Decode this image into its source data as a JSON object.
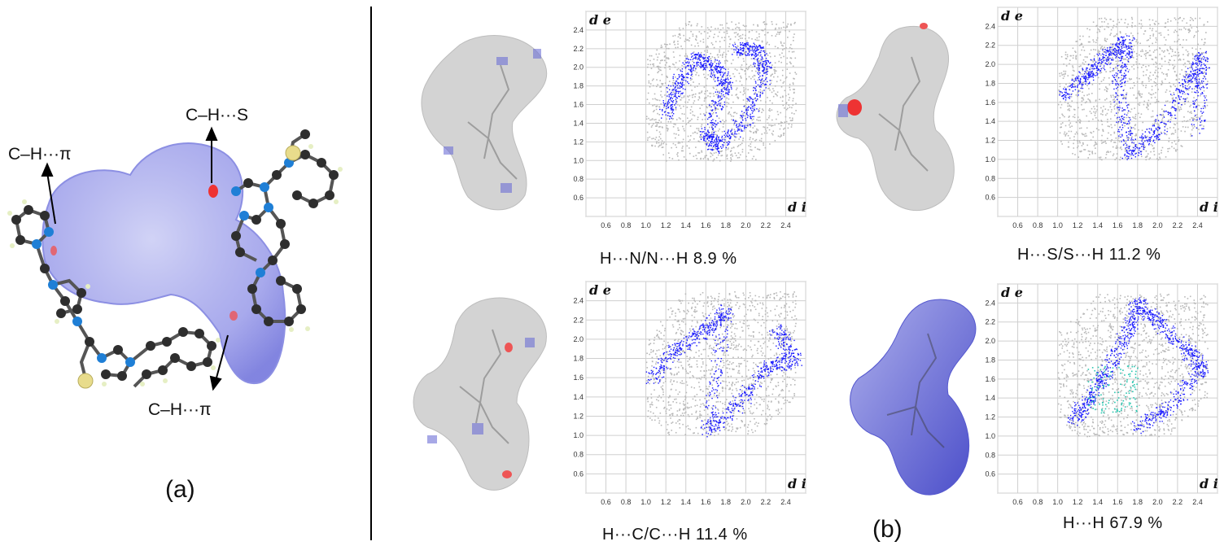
{
  "panel_a": {
    "label": "(a)",
    "annotations": [
      "C–H···π",
      "C–H···S",
      "C–H···π"
    ]
  },
  "panel_b": {
    "label": "(b)"
  },
  "colors": {
    "blue": "#1a1aff",
    "grey": "#b8b8b8",
    "surface": "#d6d6d6",
    "surface_blue": "#6f72d9"
  },
  "chart_data": [
    {
      "type": "scatter",
      "caption": "H···N/N···H   8.9 %",
      "ylabel": "d e",
      "xlabel": "d i",
      "xlim": [
        0.4,
        2.6
      ],
      "ylim": [
        0.4,
        2.6
      ],
      "xticks": [
        "0.6",
        "0.8",
        "1.0",
        "1.2",
        "1.4",
        "1.6",
        "1.8",
        "2.0",
        "2.2",
        "2.4"
      ],
      "yticks": [
        "0.6",
        "0.8",
        "1.0",
        "1.2",
        "1.4",
        "1.6",
        "1.8",
        "2.0",
        "2.2",
        "2.4"
      ],
      "highlight": [
        [
          1.2,
          1.5
        ],
        [
          1.3,
          1.8
        ],
        [
          1.5,
          2.1
        ],
        [
          1.7,
          2.0
        ],
        [
          1.8,
          1.8
        ],
        [
          1.6,
          1.3
        ],
        [
          1.7,
          1.15
        ],
        [
          2.0,
          1.45
        ],
        [
          2.2,
          1.95
        ],
        [
          2.1,
          2.2
        ],
        [
          1.9,
          2.2
        ]
      ]
    },
    {
      "type": "scatter",
      "caption": "H···S/S···H   11.2 %",
      "ylabel": "d e",
      "xlabel": "d i",
      "xlim": [
        0.4,
        2.6
      ],
      "ylim": [
        0.4,
        2.6
      ],
      "xticks": [
        "0.6",
        "0.8",
        "1.0",
        "1.2",
        "1.4",
        "1.6",
        "1.8",
        "2.0",
        "2.2",
        "2.4"
      ],
      "yticks": [
        "0.6",
        "0.8",
        "1.0",
        "1.2",
        "1.4",
        "1.6",
        "1.8",
        "2.0",
        "2.2",
        "2.4"
      ],
      "highlight": [
        [
          1.05,
          1.65
        ],
        [
          1.3,
          1.9
        ],
        [
          1.5,
          2.1
        ],
        [
          1.7,
          2.25
        ],
        [
          1.6,
          1.8
        ],
        [
          1.7,
          1.05
        ],
        [
          2.0,
          1.3
        ],
        [
          2.3,
          1.8
        ],
        [
          2.45,
          2.1
        ],
        [
          2.4,
          1.3
        ]
      ]
    },
    {
      "type": "scatter",
      "caption": "H···C/C···H   11.4 %",
      "ylabel": "d e",
      "xlabel": "d i",
      "xlim": [
        0.4,
        2.6
      ],
      "ylim": [
        0.4,
        2.6
      ],
      "xticks": [
        "0.6",
        "0.8",
        "1.0",
        "1.2",
        "1.4",
        "1.6",
        "1.8",
        "2.0",
        "2.2",
        "2.4"
      ],
      "yticks": [
        "0.6",
        "0.8",
        "1.0",
        "1.2",
        "1.4",
        "1.6",
        "1.8",
        "2.0",
        "2.2",
        "2.4"
      ],
      "highlight": [
        [
          1.05,
          1.6
        ],
        [
          1.3,
          1.9
        ],
        [
          1.6,
          2.1
        ],
        [
          1.8,
          2.3
        ],
        [
          1.6,
          1.05
        ],
        [
          1.9,
          1.3
        ],
        [
          2.2,
          1.7
        ],
        [
          2.5,
          1.8
        ],
        [
          2.3,
          2.1
        ]
      ]
    },
    {
      "type": "scatter",
      "caption": "H···H   67.9 %",
      "ylabel": "d e",
      "xlabel": "d i",
      "xlim": [
        0.4,
        2.6
      ],
      "ylim": [
        0.4,
        2.6
      ],
      "xticks": [
        "0.6",
        "0.8",
        "1.0",
        "1.2",
        "1.4",
        "1.6",
        "1.8",
        "2.0",
        "2.2",
        "2.4"
      ],
      "yticks": [
        "0.6",
        "0.8",
        "1.0",
        "1.2",
        "1.4",
        "1.6",
        "1.8",
        "2.0",
        "2.2",
        "2.4"
      ],
      "highlight": [
        [
          1.15,
          1.15
        ],
        [
          1.3,
          1.4
        ],
        [
          1.5,
          1.7
        ],
        [
          1.7,
          2.1
        ],
        [
          1.8,
          2.4
        ],
        [
          2.0,
          2.2
        ],
        [
          2.3,
          1.9
        ],
        [
          2.45,
          1.7
        ],
        [
          2.1,
          1.3
        ],
        [
          1.8,
          1.1
        ]
      ]
    }
  ]
}
